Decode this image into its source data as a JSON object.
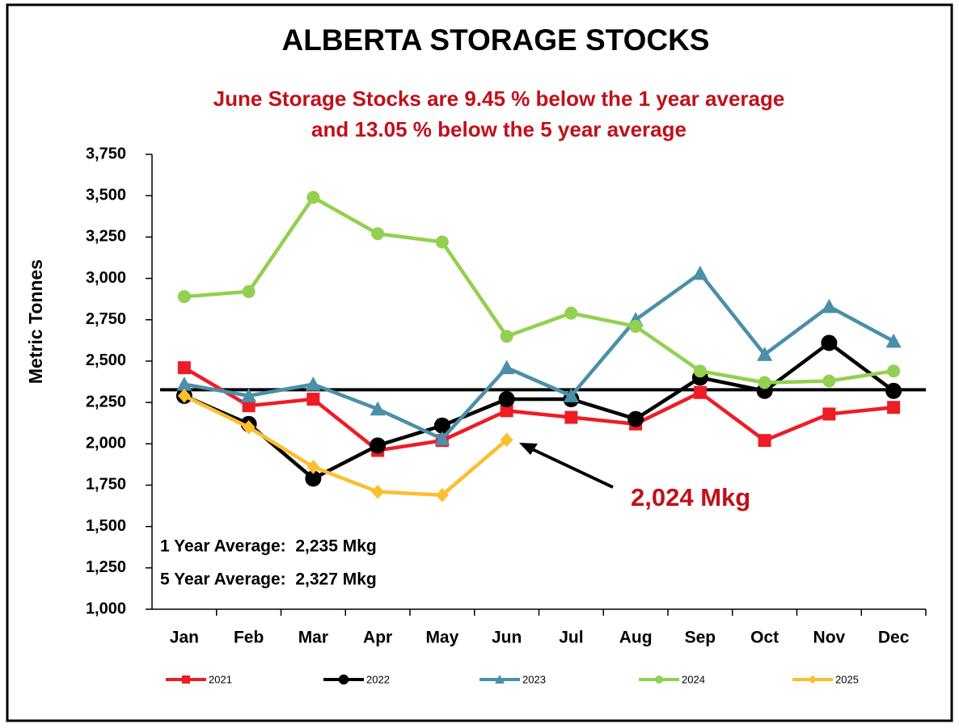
{
  "chart_data": {
    "type": "line",
    "title": "ALBERTA STORAGE STOCKS",
    "subtitle": [
      "June Storage Stocks are 9.45 % below the 1 year average",
      "and 13.05 % below the 5 year average"
    ],
    "y_label": "Metric Tonnes",
    "categories": [
      "Jan",
      "Feb",
      "Mar",
      "Apr",
      "May",
      "Jun",
      "Jul",
      "Aug",
      "Sep",
      "Oct",
      "Nov",
      "Dec"
    ],
    "series": [
      {
        "name": "2021",
        "color": "#ee1c25",
        "marker": "square",
        "values": [
          2460,
          2230,
          2270,
          1960,
          2020,
          2200,
          2160,
          2120,
          2310,
          2020,
          2180,
          2220
        ]
      },
      {
        "name": "2022",
        "color": "#000000",
        "marker": "circle",
        "values": [
          2290,
          2120,
          1790,
          1990,
          2110,
          2270,
          2270,
          2150,
          2400,
          2320,
          2610,
          2320
        ]
      },
      {
        "name": "2023",
        "color": "#4b8fa8",
        "marker": "triangle",
        "values": [
          2360,
          2290,
          2360,
          2210,
          2030,
          2460,
          2290,
          2750,
          3030,
          2540,
          2830,
          2620
        ]
      },
      {
        "name": "2024",
        "color": "#92d050",
        "marker": "dot",
        "values": [
          2890,
          2920,
          3490,
          3270,
          3220,
          2650,
          2790,
          2710,
          2440,
          2370,
          2380,
          2440
        ]
      },
      {
        "name": "2025",
        "color": "#fbbf2e",
        "marker": "diamond",
        "values": [
          2290,
          2100,
          1860,
          1710,
          1690,
          2024,
          null,
          null,
          null,
          null,
          null,
          null
        ]
      }
    ],
    "reference_line": 2327,
    "ylim": [
      1000,
      3750
    ],
    "yticks": [
      {
        "value": 1000,
        "label": "1,000"
      },
      {
        "value": 1250,
        "label": "1,250"
      },
      {
        "value": 1500,
        "label": "1,500"
      },
      {
        "value": 1750,
        "label": "1,750"
      },
      {
        "value": 2000,
        "label": "2,000"
      },
      {
        "value": 2250,
        "label": "2,250"
      },
      {
        "value": 2500,
        "label": "2,500"
      },
      {
        "value": 2750,
        "label": "2,750"
      },
      {
        "value": 3000,
        "label": "3,000"
      },
      {
        "value": 3250,
        "label": "3,250"
      },
      {
        "value": 3500,
        "label": "3,500"
      },
      {
        "value": 3750,
        "label": "3,750"
      }
    ],
    "annotations": [
      "2,024 Mkg",
      "1 Year Average:  2,235 Mkg",
      "5 Year Average:  2,327 Mkg"
    ],
    "legend": "bottom"
  }
}
